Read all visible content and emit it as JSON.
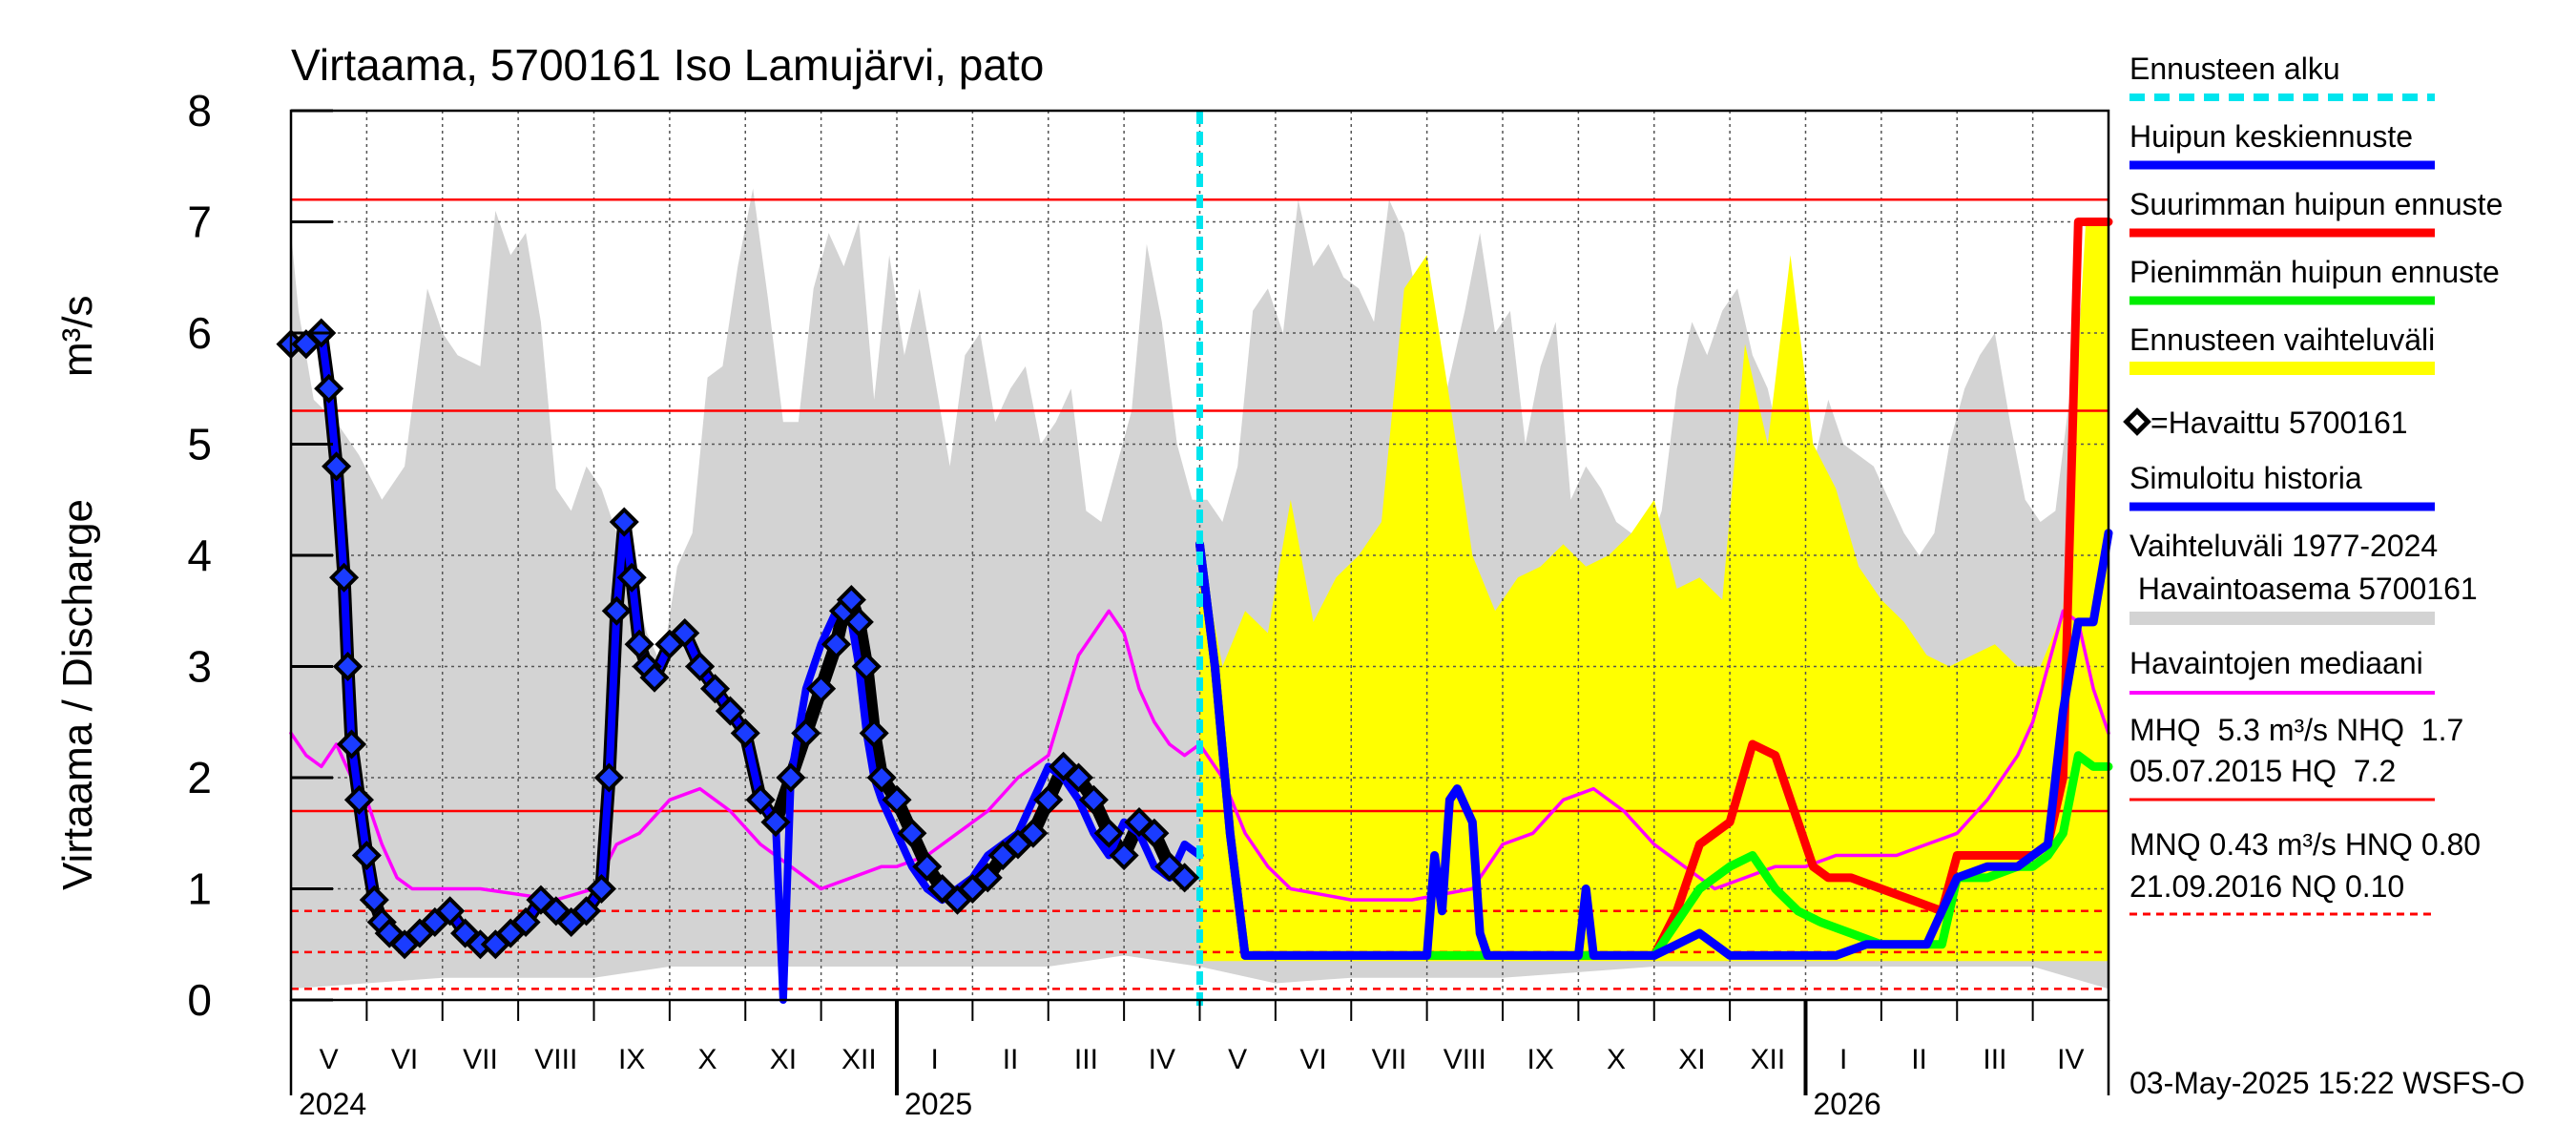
{
  "chart_data": {
    "type": "line",
    "title": "Virtaama, 5700161 Iso Lamujärvi, pato",
    "ylabel_left": "Virtaama / Discharge",
    "ylabel_unit": "m³/s",
    "ylim": [
      0,
      8
    ],
    "yticks": [
      "0",
      "1",
      "2",
      "3",
      "4",
      "5",
      "6",
      "7",
      "8"
    ],
    "month_labels": [
      "V",
      "VI",
      "VII",
      "VIII",
      "IX",
      "X",
      "XI",
      "XII",
      "I",
      "II",
      "III",
      "IV",
      "V",
      "VI",
      "VII",
      "VIII",
      "IX",
      "X",
      "XI",
      "XII",
      "I",
      "II",
      "III",
      "IV"
    ],
    "year_labels": [
      "2024",
      "2025",
      "2026"
    ],
    "forecast_start_month": 12,
    "legend": {
      "forecast_start": "Ennusteen alku",
      "mean_peak": "Huipun keskiennuste",
      "max_peak": "Suurimman huipun ennuste",
      "min_peak": "Pienimmän huipun ennuste",
      "forecast_range": "Ennusteen vaihteluväli",
      "observed": "=Havaittu 5700161",
      "simulated": "Simuloitu historia",
      "hist_range_1": "Vaihteluväli 1977-2024",
      "hist_range_2": " Havaintoasema 5700161",
      "median": "Havaintojen mediaani",
      "stats_1": "MHQ  5.3 m³/s NHQ  1.7",
      "stats_2": "05.07.2015 HQ  7.2",
      "stats_3": "MNQ 0.43 m³/s HNQ 0.80",
      "stats_4": "21.09.2016 NQ 0.10"
    },
    "reference_lines": {
      "HQ": 7.2,
      "MHQ": 5.3,
      "NHQ": 1.7,
      "HNQ": 0.8,
      "MNQ": 0.43,
      "NQ": 0.1
    },
    "series": [
      {
        "name": "Vaihteluväli 1977-2024 max",
        "color": "#d3d3d3",
        "x": [
          0,
          0.1,
          0.3,
          0.6,
          0.9,
          1.2,
          1.5,
          1.8,
          2.0,
          2.2,
          2.5,
          2.7,
          2.9,
          3.1,
          3.3,
          3.5,
          3.7,
          3.9,
          4.1,
          4.3,
          4.5,
          4.7,
          4.9,
          5.1,
          5.3,
          5.5,
          5.7,
          5.9,
          6.1,
          6.3,
          6.5,
          6.7,
          6.9,
          7.1,
          7.3,
          7.5,
          7.7,
          7.9,
          8.1,
          8.3,
          8.5,
          8.7,
          8.9,
          9.1,
          9.3,
          9.5,
          9.7,
          9.9,
          10.1,
          10.3,
          10.5,
          10.7,
          10.9,
          11.1,
          11.3,
          11.5,
          11.7,
          11.9,
          12.1,
          12.3,
          12.5,
          12.7,
          12.9,
          13.1,
          13.3,
          13.5,
          13.7,
          13.9,
          14.1,
          14.3,
          14.5,
          14.7,
          14.9,
          15.1,
          15.3,
          15.5,
          15.7,
          15.9,
          16.1,
          16.3,
          16.5,
          16.7,
          16.9,
          17.1,
          17.3,
          17.5,
          17.7,
          17.9,
          18.1,
          18.3,
          18.5,
          18.7,
          18.9,
          19.1,
          19.3,
          19.5,
          19.7,
          19.9,
          20.1,
          20.3,
          20.5,
          20.7,
          20.9,
          21.1,
          21.3,
          21.5,
          21.7,
          21.9,
          22.1,
          22.3,
          22.5,
          22.7,
          22.9,
          23.1,
          23.3,
          23.5,
          23.7,
          23.9,
          24.0
        ],
        "values": [
          6.9,
          6.2,
          5.4,
          5.2,
          4.9,
          4.5,
          4.8,
          6.4,
          6.0,
          5.8,
          5.7,
          7.1,
          6.7,
          6.9,
          6.1,
          4.6,
          4.4,
          4.8,
          4.6,
          4.2,
          3.8,
          3.3,
          3.0,
          3.9,
          4.2,
          5.6,
          5.7,
          6.6,
          7.3,
          6.3,
          5.2,
          5.2,
          6.4,
          6.9,
          6.6,
          7.0,
          5.4,
          6.7,
          5.8,
          6.4,
          5.6,
          4.8,
          5.8,
          6.0,
          5.2,
          5.5,
          5.7,
          5.0,
          5.2,
          5.5,
          4.4,
          4.3,
          4.8,
          5.3,
          6.8,
          6.1,
          5.0,
          4.5,
          4.5,
          4.3,
          4.8,
          6.2,
          6.4,
          6.0,
          7.2,
          6.6,
          6.8,
          6.5,
          6.4,
          6.1,
          7.2,
          6.9,
          6.2,
          5.0,
          5.6,
          6.2,
          6.9,
          6.0,
          6.2,
          5.0,
          5.7,
          6.1,
          4.5,
          4.8,
          4.6,
          4.3,
          4.2,
          4.0,
          4.4,
          5.5,
          6.1,
          5.8,
          6.2,
          6.4,
          5.8,
          5.5,
          4.9,
          4.7,
          4.8,
          5.4,
          5.0,
          4.9,
          4.8,
          4.5,
          4.2,
          4.0,
          4.2,
          5.0,
          5.5,
          5.8,
          6.0,
          5.2,
          4.5,
          4.3,
          4.4,
          5.5,
          6.6,
          6.3,
          6.2
        ]
      },
      {
        "name": "Vaihteluväli 1977-2024 min",
        "color": "#d3d3d3",
        "x": [
          0,
          1,
          2,
          3,
          4,
          5,
          6,
          7,
          8,
          9,
          10,
          11,
          12,
          13,
          14,
          15,
          16,
          17,
          18,
          19,
          20,
          21,
          22,
          23,
          24
        ],
        "values": [
          0.1,
          0.15,
          0.2,
          0.2,
          0.2,
          0.3,
          0.3,
          0.3,
          0.3,
          0.3,
          0.3,
          0.4,
          0.3,
          0.15,
          0.2,
          0.2,
          0.2,
          0.25,
          0.3,
          0.3,
          0.3,
          0.3,
          0.3,
          0.3,
          0.1
        ]
      },
      {
        "name": "Ennusteen vaihteluväli max",
        "color": "#ffff00",
        "x": [
          12.0,
          12.3,
          12.6,
          12.9,
          13.2,
          13.5,
          13.8,
          14.1,
          14.4,
          14.7,
          15.0,
          15.3,
          15.6,
          15.9,
          16.2,
          16.5,
          16.8,
          17.1,
          17.4,
          17.7,
          18.0,
          18.3,
          18.6,
          18.9,
          19.2,
          19.5,
          19.8,
          20.1,
          20.4,
          20.7,
          21.0,
          21.3,
          21.6,
          21.9,
          22.2,
          22.5,
          22.8,
          23.1,
          23.4,
          23.7,
          24.0
        ],
        "values": [
          4.1,
          3.0,
          3.5,
          3.3,
          4.5,
          3.4,
          3.8,
          4.0,
          4.3,
          6.4,
          6.7,
          5.4,
          4.0,
          3.5,
          3.8,
          3.9,
          4.1,
          3.9,
          4.0,
          4.2,
          4.5,
          3.7,
          3.8,
          3.6,
          5.9,
          5.0,
          6.7,
          5.0,
          4.6,
          3.9,
          3.6,
          3.4,
          3.1,
          3.0,
          3.1,
          3.2,
          3.0,
          3.0,
          3.5,
          7.0,
          7.0
        ]
      },
      {
        "name": "Havaintojen mediaani",
        "color": "#ff00ff",
        "x": [
          0,
          0.2,
          0.4,
          0.6,
          0.8,
          1.0,
          1.2,
          1.4,
          1.6,
          1.8,
          2.0,
          2.5,
          3.0,
          3.5,
          4.0,
          4.3,
          4.6,
          5.0,
          5.4,
          5.8,
          6.2,
          6.6,
          7.0,
          7.4,
          7.8,
          8.0,
          8.4,
          8.8,
          9.2,
          9.6,
          10.0,
          10.4,
          10.8,
          11.0,
          11.2,
          11.4,
          11.6,
          11.8,
          12.0,
          12.3,
          12.6,
          12.9,
          13.2,
          13.6,
          14.0,
          14.4,
          14.8,
          15.2,
          15.6,
          16.0,
          16.4,
          16.8,
          17.2,
          17.6,
          18.0,
          18.4,
          18.8,
          19.2,
          19.6,
          20.0,
          20.4,
          20.8,
          21.2,
          21.6,
          22.0,
          22.4,
          22.8,
          23.0,
          23.2,
          23.4,
          23.6,
          23.8,
          24.0
        ],
        "values": [
          2.4,
          2.2,
          2.1,
          2.3,
          2.0,
          1.8,
          1.4,
          1.1,
          1.0,
          1.0,
          1.0,
          1.0,
          0.95,
          0.9,
          1.0,
          1.4,
          1.5,
          1.8,
          1.9,
          1.7,
          1.4,
          1.2,
          1.0,
          1.1,
          1.2,
          1.2,
          1.3,
          1.5,
          1.7,
          2.0,
          2.2,
          3.1,
          3.5,
          3.3,
          2.8,
          2.5,
          2.3,
          2.2,
          2.3,
          2.0,
          1.5,
          1.2,
          1.0,
          0.95,
          0.9,
          0.9,
          0.9,
          0.95,
          1.0,
          1.4,
          1.5,
          1.8,
          1.9,
          1.7,
          1.4,
          1.2,
          1.0,
          1.1,
          1.2,
          1.2,
          1.3,
          1.3,
          1.3,
          1.4,
          1.5,
          1.8,
          2.2,
          2.5,
          3.0,
          3.5,
          3.4,
          2.8,
          2.4
        ]
      },
      {
        "name": "Havaittu 5700161",
        "color": "#000000",
        "x": [
          0.0,
          0.2,
          0.4,
          0.5,
          0.6,
          0.7,
          0.75,
          0.8,
          0.9,
          1.0,
          1.1,
          1.2,
          1.3,
          1.5,
          1.7,
          1.9,
          2.1,
          2.3,
          2.5,
          2.7,
          2.9,
          3.1,
          3.3,
          3.5,
          3.7,
          3.9,
          4.1,
          4.2,
          4.3,
          4.4,
          4.5,
          4.6,
          4.7,
          4.8,
          5.0,
          5.2,
          5.4,
          5.6,
          5.8,
          6.0,
          6.2,
          6.4,
          6.6,
          6.8,
          7.0,
          7.2,
          7.3,
          7.4,
          7.5,
          7.6,
          7.7,
          7.8,
          8.0,
          8.2,
          8.4,
          8.6,
          8.8,
          9.0,
          9.2,
          9.4,
          9.6,
          9.8,
          10.0,
          10.2,
          10.4,
          10.6,
          10.8,
          11.0,
          11.2,
          11.4,
          11.6,
          11.8
        ],
        "values": [
          5.9,
          5.9,
          6.0,
          5.5,
          4.8,
          3.8,
          3.0,
          2.3,
          1.8,
          1.3,
          0.9,
          0.7,
          0.6,
          0.5,
          0.6,
          0.7,
          0.8,
          0.6,
          0.5,
          0.5,
          0.6,
          0.7,
          0.9,
          0.8,
          0.7,
          0.8,
          1.0,
          2.0,
          3.5,
          4.3,
          3.8,
          3.2,
          3.0,
          2.9,
          3.2,
          3.3,
          3.0,
          2.8,
          2.6,
          2.4,
          1.8,
          1.6,
          2.0,
          2.4,
          2.8,
          3.2,
          3.5,
          3.6,
          3.4,
          3.0,
          2.4,
          2.0,
          1.8,
          1.5,
          1.2,
          1.0,
          0.9,
          1.0,
          1.1,
          1.3,
          1.4,
          1.5,
          1.8,
          2.1,
          2.0,
          1.8,
          1.5,
          1.3,
          1.6,
          1.5,
          1.2,
          1.1
        ]
      },
      {
        "name": "Simuloitu historia",
        "color": "#0000ff",
        "x": [
          0.0,
          0.2,
          0.4,
          0.5,
          0.6,
          0.7,
          0.75,
          0.8,
          0.9,
          1.0,
          1.1,
          1.2,
          1.3,
          1.5,
          1.7,
          1.9,
          2.1,
          2.3,
          2.5,
          2.7,
          2.9,
          3.1,
          3.3,
          3.5,
          3.7,
          3.9,
          4.1,
          4.2,
          4.3,
          4.4,
          4.5,
          4.6,
          4.7,
          4.8,
          5.0,
          5.2,
          5.4,
          5.6,
          5.8,
          6.0,
          6.2,
          6.4,
          6.5,
          6.6,
          6.7,
          6.8,
          7.0,
          7.2,
          7.3,
          7.4,
          7.5,
          7.6,
          7.7,
          7.8,
          8.0,
          8.2,
          8.4,
          8.6,
          8.8,
          9.0,
          9.2,
          9.4,
          9.6,
          9.8,
          10.0,
          10.2,
          10.4,
          10.6,
          10.8,
          11.0,
          11.2,
          11.4,
          11.6,
          11.8,
          12.0
        ],
        "values": [
          5.9,
          5.9,
          6.0,
          5.5,
          4.8,
          3.8,
          3.0,
          2.3,
          1.8,
          1.3,
          0.9,
          0.7,
          0.6,
          0.5,
          0.6,
          0.7,
          0.8,
          0.6,
          0.5,
          0.5,
          0.6,
          0.7,
          0.9,
          0.8,
          0.7,
          0.8,
          1.0,
          2.0,
          3.5,
          4.3,
          3.8,
          3.2,
          3.0,
          2.9,
          3.2,
          3.3,
          3.0,
          2.8,
          2.6,
          2.4,
          1.8,
          1.6,
          0.0,
          2.0,
          2.4,
          2.8,
          3.2,
          3.5,
          3.6,
          3.4,
          3.0,
          2.4,
          2.0,
          1.8,
          1.5,
          1.2,
          1.0,
          0.9,
          1.0,
          1.1,
          1.3,
          1.4,
          1.5,
          1.8,
          2.1,
          2.0,
          1.8,
          1.5,
          1.3,
          1.6,
          1.5,
          1.2,
          1.1,
          1.4,
          1.3
        ]
      },
      {
        "name": "Suurimman huipun ennuste",
        "color": "#ff0000",
        "x": [
          12.0,
          12.2,
          12.4,
          12.6,
          15.0,
          17.0,
          18.0,
          18.3,
          18.6,
          19.0,
          19.3,
          19.6,
          19.9,
          20.1,
          20.3,
          20.6,
          21.0,
          21.4,
          21.8,
          22.0,
          22.2,
          22.6,
          23.0,
          23.2,
          23.4,
          23.6,
          23.8,
          24.0
        ],
        "values": [
          4.1,
          3.0,
          1.5,
          0.4,
          0.4,
          0.4,
          0.4,
          0.8,
          1.4,
          1.6,
          2.3,
          2.2,
          1.6,
          1.2,
          1.1,
          1.1,
          1.0,
          0.9,
          0.8,
          1.3,
          1.3,
          1.3,
          1.3,
          1.4,
          2.0,
          7.0,
          7.0,
          7.0
        ]
      },
      {
        "name": "Pienimmän huipun ennuste",
        "color": "#00ff00",
        "x": [
          12.0,
          12.2,
          12.4,
          12.6,
          17.0,
          18.0,
          18.3,
          18.6,
          19.0,
          19.3,
          19.6,
          19.9,
          20.2,
          20.6,
          21.0,
          21.4,
          21.8,
          22.0,
          22.4,
          22.8,
          23.0,
          23.2,
          23.4,
          23.6,
          23.8,
          24.0
        ],
        "values": [
          4.1,
          3.0,
          1.5,
          0.4,
          0.4,
          0.4,
          0.7,
          1.0,
          1.2,
          1.3,
          1.0,
          0.8,
          0.7,
          0.6,
          0.5,
          0.5,
          0.5,
          1.1,
          1.1,
          1.2,
          1.2,
          1.3,
          1.5,
          2.2,
          2.1,
          2.1
        ]
      },
      {
        "name": "Huipun keskiennuste",
        "color": "#0000ff",
        "x": [
          12.0,
          12.2,
          12.4,
          12.6,
          14.0,
          15.0,
          15.1,
          15.2,
          15.3,
          15.4,
          15.6,
          15.7,
          15.8,
          16.0,
          17.0,
          17.1,
          17.2,
          17.3,
          18.0,
          18.3,
          18.6,
          18.8,
          19.0,
          19.2,
          19.6,
          20.0,
          20.4,
          20.8,
          21.2,
          21.6,
          22.0,
          22.4,
          22.8,
          23.0,
          23.2,
          23.4,
          23.6,
          23.8,
          24.0
        ],
        "values": [
          4.1,
          3.0,
          1.5,
          0.4,
          0.4,
          0.4,
          1.3,
          0.8,
          1.8,
          1.9,
          1.6,
          0.6,
          0.4,
          0.4,
          0.4,
          1.0,
          0.4,
          0.4,
          0.4,
          0.5,
          0.6,
          0.5,
          0.4,
          0.4,
          0.4,
          0.4,
          0.4,
          0.5,
          0.5,
          0.5,
          1.1,
          1.2,
          1.2,
          1.3,
          1.4,
          2.6,
          3.4,
          3.4,
          4.2
        ]
      }
    ]
  },
  "footer": {
    "timestamp": "03-May-2025 15:22 WSFS-O"
  }
}
